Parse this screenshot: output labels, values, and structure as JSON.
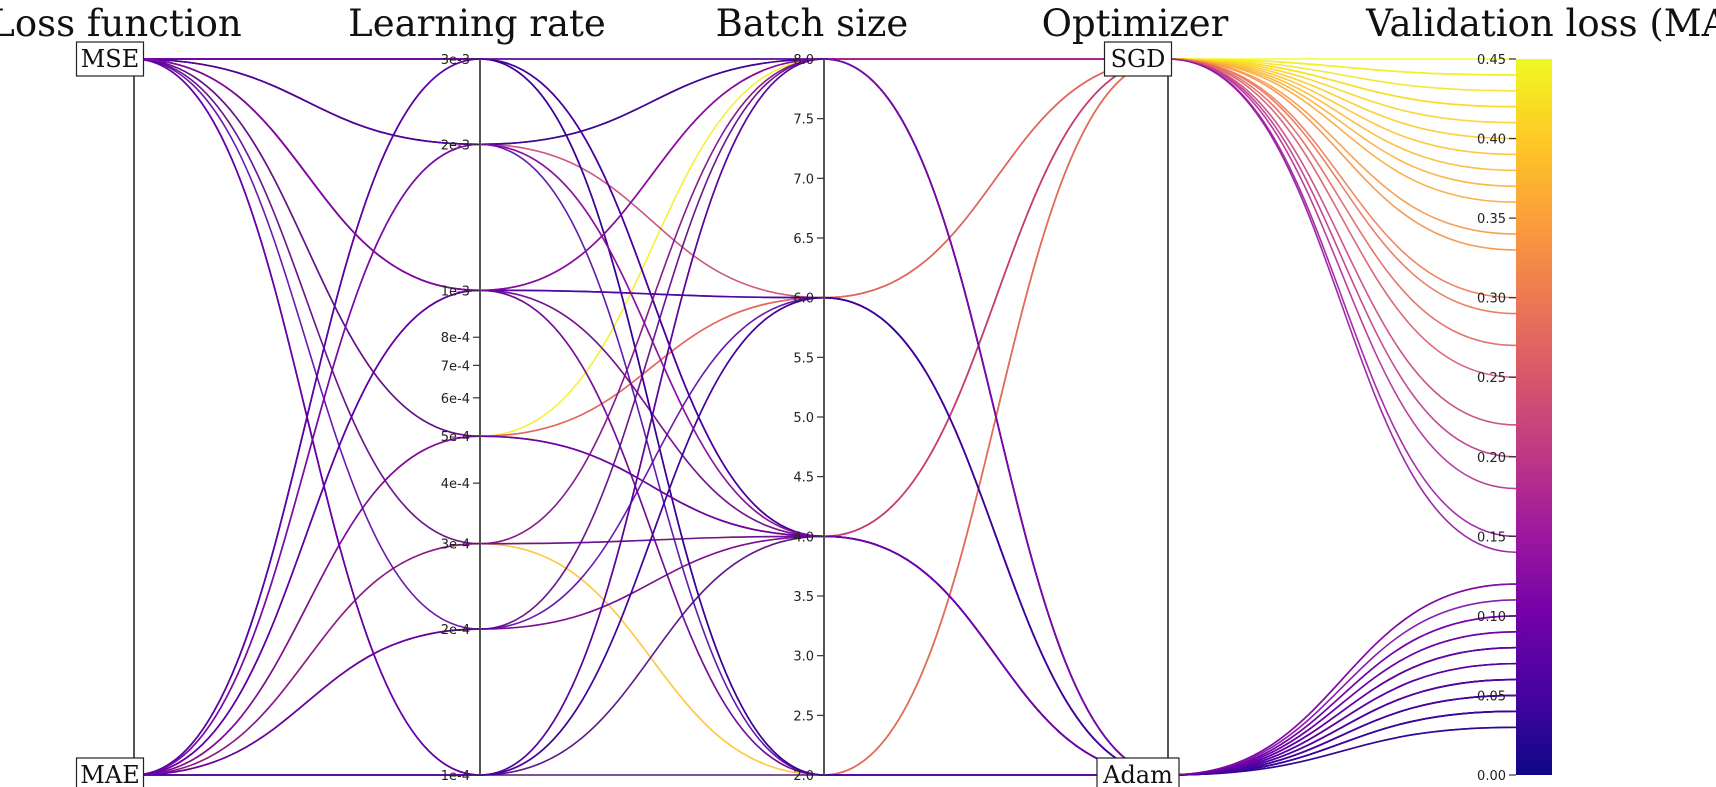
{
  "chart_data": {
    "type": "parallel_coordinates",
    "colormap": "plasma",
    "color_stops": [
      "#0d0887",
      "#46039f",
      "#7201a8",
      "#9c179e",
      "#bd3786",
      "#d8576b",
      "#ed7953",
      "#fb9f3a",
      "#fdca26",
      "#f0f921"
    ],
    "axes": [
      {
        "key": "loss",
        "title": "Loss function",
        "kind": "categorical",
        "categories": [
          "MSE",
          "MAE"
        ]
      },
      {
        "key": "lr",
        "title": "Learning rate",
        "kind": "log",
        "range": [
          0.0001,
          0.003
        ],
        "ticks": [
          {
            "v": 0.003,
            "label": "3e-3"
          },
          {
            "v": 0.002,
            "label": "2e-3"
          },
          {
            "v": 0.001,
            "label": "1e-3"
          },
          {
            "v": 0.0008,
            "label": "8e-4"
          },
          {
            "v": 0.0007,
            "label": "7e-4"
          },
          {
            "v": 0.0006,
            "label": "6e-4"
          },
          {
            "v": 0.0005,
            "label": "5e-4"
          },
          {
            "v": 0.0004,
            "label": "4e-4"
          },
          {
            "v": 0.0003,
            "label": "3e-4"
          },
          {
            "v": 0.0002,
            "label": "2e-4"
          },
          {
            "v": 0.0001,
            "label": "1e-4"
          }
        ]
      },
      {
        "key": "batch",
        "title": "Batch size",
        "kind": "linear",
        "range": [
          2.0,
          8.0
        ],
        "ticks": [
          {
            "v": 8.0,
            "label": "8.0"
          },
          {
            "v": 7.5,
            "label": "7.5"
          },
          {
            "v": 7.0,
            "label": "7.0"
          },
          {
            "v": 6.5,
            "label": "6.5"
          },
          {
            "v": 6.0,
            "label": "6.0"
          },
          {
            "v": 5.5,
            "label": "5.5"
          },
          {
            "v": 5.0,
            "label": "5.0"
          },
          {
            "v": 4.5,
            "label": "4.5"
          },
          {
            "v": 4.0,
            "label": "4.0"
          },
          {
            "v": 3.5,
            "label": "3.5"
          },
          {
            "v": 3.0,
            "label": "3.0"
          },
          {
            "v": 2.5,
            "label": "2.5"
          },
          {
            "v": 2.0,
            "label": "2.0"
          }
        ]
      },
      {
        "key": "opt",
        "title": "Optimizer",
        "kind": "categorical",
        "categories": [
          "SGD",
          "Adam"
        ]
      },
      {
        "key": "mae",
        "title": "Validation loss (MAE)",
        "kind": "linear",
        "range": [
          0.0,
          0.45
        ],
        "ticks": [
          {
            "v": 0.45,
            "label": "0.45"
          },
          {
            "v": 0.4,
            "label": "0.40"
          },
          {
            "v": 0.35,
            "label": "0.35"
          },
          {
            "v": 0.3,
            "label": "0.30"
          },
          {
            "v": 0.25,
            "label": "0.25"
          },
          {
            "v": 0.2,
            "label": "0.20"
          },
          {
            "v": 0.15,
            "label": "0.15"
          },
          {
            "v": 0.1,
            "label": "0.10"
          },
          {
            "v": 0.05,
            "label": "0.05"
          },
          {
            "v": 0.0,
            "label": "0.00"
          }
        ]
      }
    ],
    "runs": [
      {
        "loss": "MSE",
        "lr": 0.003,
        "batch": 8,
        "opt": "SGD",
        "mae": 0.45
      },
      {
        "loss": "MSE",
        "lr": 0.001,
        "batch": 8,
        "opt": "SGD",
        "mae": 0.4
      },
      {
        "loss": "MAE",
        "lr": 0.0005,
        "batch": 8,
        "opt": "SGD",
        "mae": 0.44
      },
      {
        "loss": "MAE",
        "lr": 0.0003,
        "batch": 8,
        "opt": "SGD",
        "mae": 0.42
      },
      {
        "loss": "MAE",
        "lr": 0.0002,
        "batch": 8,
        "opt": "SGD",
        "mae": 0.41
      },
      {
        "loss": "MSE",
        "lr": 0.002,
        "batch": 8,
        "opt": "SGD",
        "mae": 0.33
      },
      {
        "loss": "MSE",
        "lr": 0.0005,
        "batch": 4,
        "opt": "SGD",
        "mae": 0.43
      },
      {
        "loss": "MAE",
        "lr": 0.0001,
        "batch": 4,
        "opt": "SGD",
        "mae": 0.42
      },
      {
        "loss": "MSE",
        "lr": 0.0003,
        "batch": 4,
        "opt": "SGD",
        "mae": 0.38
      },
      {
        "loss": "MAE",
        "lr": 0.0002,
        "batch": 4,
        "opt": "SGD",
        "mae": 0.36
      },
      {
        "loss": "MSE",
        "lr": 0.001,
        "batch": 4,
        "opt": "SGD",
        "mae": 0.37
      },
      {
        "loss": "MAE",
        "lr": 0.0001,
        "batch": 2,
        "opt": "SGD",
        "mae": 0.44
      },
      {
        "loss": "MAE",
        "lr": 0.0003,
        "batch": 2,
        "opt": "SGD",
        "mae": 0.39
      },
      {
        "loss": "MSE",
        "lr": 0.002,
        "batch": 6,
        "opt": "SGD",
        "mae": 0.22
      },
      {
        "loss": "MSE",
        "lr": 0.0005,
        "batch": 6,
        "opt": "SGD",
        "mae": 0.3
      },
      {
        "loss": "MAE",
        "lr": 0.0001,
        "batch": 8,
        "opt": "SGD",
        "mae": 0.34
      },
      {
        "loss": "MSE",
        "lr": 0.003,
        "batch": 2,
        "opt": "SGD",
        "mae": 0.18
      },
      {
        "loss": "MSE",
        "lr": 0.001,
        "batch": 2,
        "opt": "SGD",
        "mae": 0.29
      },
      {
        "loss": "MSE",
        "lr": 0.002,
        "batch": 4,
        "opt": "SGD",
        "mae": 0.25
      },
      {
        "loss": "MAE",
        "lr": 0.001,
        "batch": 8,
        "opt": "SGD",
        "mae": 0.15
      },
      {
        "loss": "MSE",
        "lr": 0.003,
        "batch": 4,
        "opt": "SGD",
        "mae": 0.2
      },
      {
        "loss": "MAE",
        "lr": 0.0005,
        "batch": 6,
        "opt": "SGD",
        "mae": 0.27
      },
      {
        "loss": "MSE",
        "lr": 0.0001,
        "batch": 8,
        "opt": "SGD",
        "mae": 0.14
      },
      {
        "loss": "MSE",
        "lr": 0.003,
        "batch": 8,
        "opt": "Adam",
        "mae": 0.04
      },
      {
        "loss": "MSE",
        "lr": 0.002,
        "batch": 8,
        "opt": "Adam",
        "mae": 0.03
      },
      {
        "loss": "MSE",
        "lr": 0.001,
        "batch": 6,
        "opt": "Adam",
        "mae": 0.05
      },
      {
        "loss": "MSE",
        "lr": 0.0005,
        "batch": 4,
        "opt": "Adam",
        "mae": 0.06
      },
      {
        "loss": "MSE",
        "lr": 0.0003,
        "batch": 4,
        "opt": "Adam",
        "mae": 0.07
      },
      {
        "loss": "MSE",
        "lr": 0.0001,
        "batch": 2,
        "opt": "Adam",
        "mae": 0.05
      },
      {
        "loss": "MSE",
        "lr": 0.003,
        "batch": 4,
        "opt": "Adam",
        "mae": 0.04
      },
      {
        "loss": "MSE",
        "lr": 0.002,
        "batch": 2,
        "opt": "Adam",
        "mae": 0.06
      },
      {
        "loss": "MSE",
        "lr": 0.001,
        "batch": 4,
        "opt": "Adam",
        "mae": 0.08
      },
      {
        "loss": "MSE",
        "lr": 0.0001,
        "batch": 6,
        "opt": "Adam",
        "mae": 0.09
      },
      {
        "loss": "MSE",
        "lr": 0.0002,
        "batch": 8,
        "opt": "Adam",
        "mae": 0.07
      },
      {
        "loss": "MSE",
        "lr": 0.003,
        "batch": 2,
        "opt": "Adam",
        "mae": 0.1
      },
      {
        "loss": "MAE",
        "lr": 0.003,
        "batch": 2,
        "opt": "Adam",
        "mae": 0.03
      },
      {
        "loss": "MAE",
        "lr": 0.003,
        "batch": 4,
        "opt": "Adam",
        "mae": 0.05
      },
      {
        "loss": "MAE",
        "lr": 0.002,
        "batch": 8,
        "opt": "Adam",
        "mae": 0.04
      },
      {
        "loss": "MAE",
        "lr": 0.001,
        "batch": 6,
        "opt": "Adam",
        "mae": 0.06
      },
      {
        "loss": "MAE",
        "lr": 0.001,
        "batch": 2,
        "opt": "Adam",
        "mae": 0.08
      },
      {
        "loss": "MAE",
        "lr": 0.0002,
        "batch": 6,
        "opt": "Adam",
        "mae": 0.07
      },
      {
        "loss": "MAE",
        "lr": 0.0002,
        "batch": 4,
        "opt": "Adam",
        "mae": 0.09
      },
      {
        "loss": "MAE",
        "lr": 0.0001,
        "batch": 6,
        "opt": "Adam",
        "mae": 0.04
      },
      {
        "loss": "MAE",
        "lr": 0.0001,
        "batch": 4,
        "opt": "Adam",
        "mae": 0.05
      },
      {
        "loss": "MAE",
        "lr": 0.0003,
        "batch": 8,
        "opt": "Adam",
        "mae": 0.11
      },
      {
        "loss": "MAE",
        "lr": 0.0001,
        "batch": 8,
        "opt": "Adam",
        "mae": 0.06
      },
      {
        "loss": "MAE",
        "lr": 0.002,
        "batch": 4,
        "opt": "Adam",
        "mae": 0.12
      },
      {
        "loss": "MAE",
        "lr": 0.003,
        "batch": 8,
        "opt": "Adam",
        "mae": 0.08
      },
      {
        "loss": "MSE",
        "lr": 0.001,
        "batch": 8,
        "opt": "Adam",
        "mae": 0.12
      },
      {
        "loss": "MAE",
        "lr": 0.0005,
        "batch": 4,
        "opt": "Adam",
        "mae": 0.1
      }
    ]
  }
}
